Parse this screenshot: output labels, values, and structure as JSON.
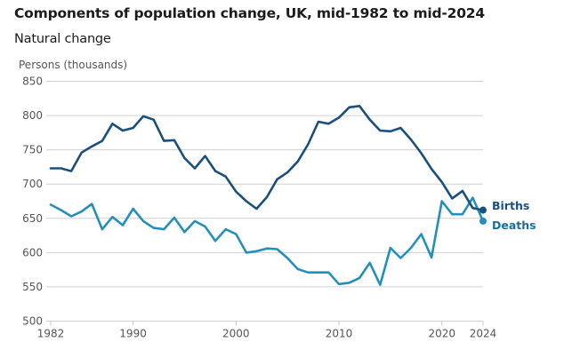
{
  "chart_data": {
    "type": "line",
    "title": "Components of population change, UK, mid-1982 to mid-2024",
    "subtitle": "Natural change",
    "xlabel": "",
    "ylabel": "Persons (thousands)",
    "ylim": [
      500,
      850
    ],
    "xlim": [
      1982,
      2024
    ],
    "yticks": [
      500,
      550,
      600,
      650,
      700,
      750,
      800,
      850
    ],
    "xticks": [
      1982,
      1990,
      2000,
      2010,
      2020,
      2024
    ],
    "grid": true,
    "legend": "inline-right",
    "x": [
      1982,
      1983,
      1984,
      1985,
      1986,
      1987,
      1988,
      1989,
      1990,
      1991,
      1992,
      1993,
      1994,
      1995,
      1996,
      1997,
      1998,
      1999,
      2000,
      2001,
      2002,
      2003,
      2004,
      2005,
      2006,
      2007,
      2008,
      2009,
      2010,
      2011,
      2012,
      2013,
      2014,
      2015,
      2016,
      2017,
      2018,
      2019,
      2020,
      2021,
      2022,
      2023,
      2024
    ],
    "series": [
      {
        "name": "Births",
        "color": "#1b4f7e",
        "values": [
          723,
          723,
          719,
          746,
          755,
          763,
          788,
          778,
          782,
          799,
          794,
          763,
          764,
          738,
          723,
          741,
          719,
          711,
          689,
          675,
          664,
          681,
          707,
          717,
          733,
          758,
          791,
          788,
          797,
          812,
          814,
          794,
          778,
          777,
          782,
          765,
          745,
          722,
          703,
          679,
          690,
          665,
          662
        ]
      },
      {
        "name": "Deaths",
        "color": "#2490b9",
        "values": [
          670,
          662,
          653,
          660,
          671,
          634,
          652,
          640,
          664,
          646,
          636,
          634,
          651,
          630,
          646,
          638,
          617,
          634,
          627,
          600,
          602,
          606,
          605,
          592,
          576,
          571,
          571,
          571,
          554,
          556,
          563,
          585,
          553,
          607,
          592,
          607,
          627,
          593,
          675,
          656,
          656,
          680,
          646
        ]
      }
    ]
  }
}
